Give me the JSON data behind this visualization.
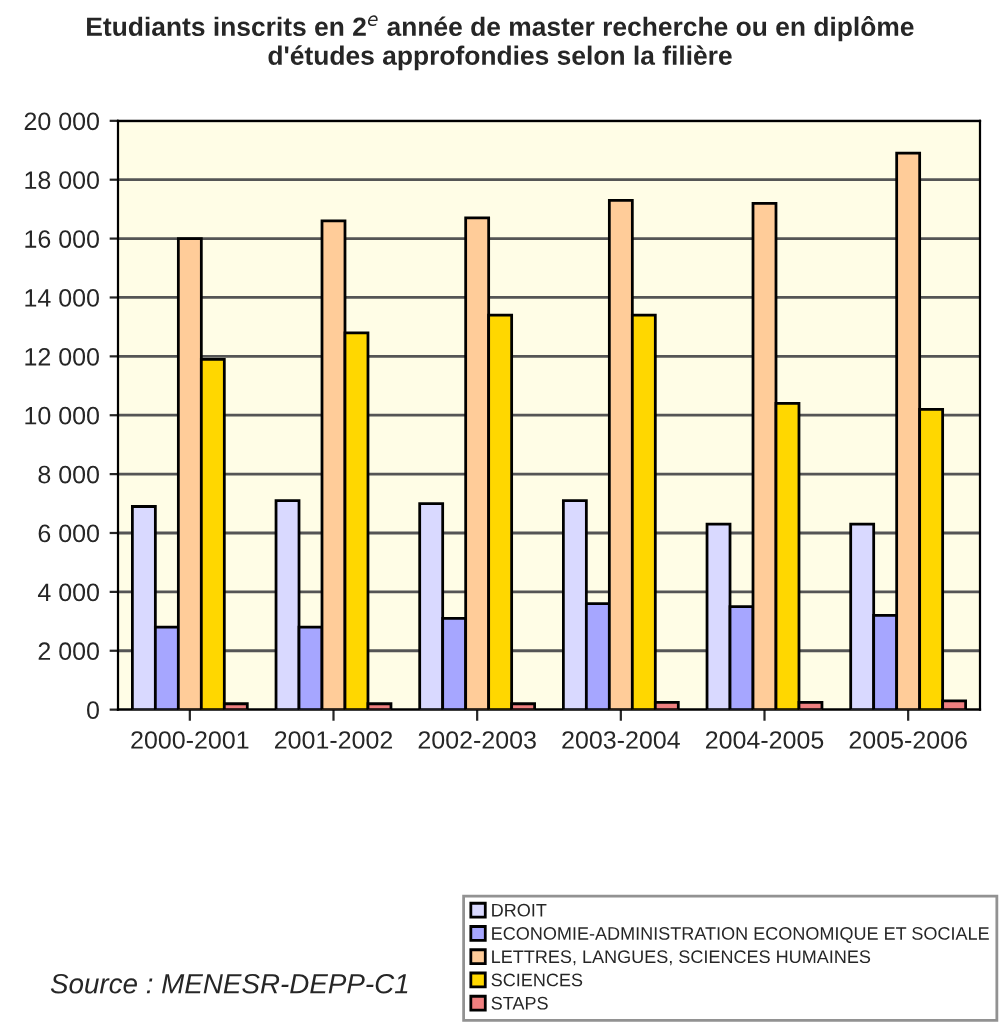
{
  "chart_data": {
    "type": "bar",
    "title": "Etudiants inscrits en 2$^{e}$ année de master recherche ou en diplôme\nd'études approfondies selon la filière",
    "categories": [
      "2000-2001",
      "2001-2002",
      "2002-2003",
      "2003-2004",
      "2004-2005",
      "2005-2006"
    ],
    "series": [
      {
        "name": "DROIT",
        "color": "#d9d9ff",
        "values": [
          6900,
          7100,
          7000,
          7100,
          6300,
          6300
        ]
      },
      {
        "name": "ECONOMIE-ADMINISTRATION ECONOMIQUE ET SOCIALE",
        "color": "#a6a6ff",
        "values": [
          2800,
          2800,
          3100,
          3600,
          3500,
          3200
        ]
      },
      {
        "name": "LETTRES, LANGUES, SCIENCES HUMAINES",
        "color": "#ffcc99",
        "values": [
          16000,
          16600,
          16700,
          17300,
          17200,
          18900
        ]
      },
      {
        "name": "SCIENCES",
        "color": "#ffd700",
        "values": [
          11900,
          12800,
          13400,
          13400,
          10400,
          10200
        ]
      },
      {
        "name": "STAPS",
        "color": "#f08080",
        "values": [
          200,
          200,
          200,
          250,
          250,
          300
        ]
      }
    ],
    "ylim": [
      0,
      20000
    ],
    "yticks": [
      0,
      {
        "value": 2000,
        "label": "2 000"
      },
      {
        "value": 4000,
        "label": "4 000"
      },
      {
        "value": 6000,
        "label": "6 000"
      },
      {
        "value": 8000,
        "label": "8 000"
      },
      {
        "value": 10000,
        "label": "10 000"
      },
      {
        "value": 12000,
        "label": "12 000"
      },
      {
        "value": 14000,
        "label": "14 000"
      },
      {
        "value": 16000,
        "label": "16 000"
      },
      {
        "value": 18000,
        "label": "18 000"
      },
      {
        "value": 20000,
        "label": "20 000"
      }
    ],
    "grid": "y",
    "legend": "bottom right",
    "annotations": [
      "Source : MENESR-DEPP-C1"
    ]
  }
}
